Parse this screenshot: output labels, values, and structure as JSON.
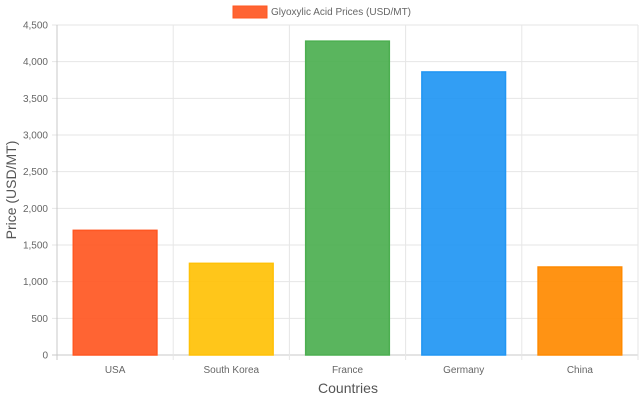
{
  "chart_data": {
    "type": "bar",
    "categories": [
      "USA",
      "South Korea",
      "France",
      "Germany",
      "China"
    ],
    "series": [
      {
        "name": "Glyoxylic Acid Prices (USD/MT)",
        "values": [
          1700,
          1250,
          4280,
          3860,
          1200
        ]
      }
    ],
    "bar_colors": [
      "#ff5722",
      "#ffc107",
      "#4caf50",
      "#2196f3",
      "#ff8a00"
    ],
    "legend_color": "#ff5722",
    "xlabel": "Countries",
    "ylabel": "Price (USD/MT)",
    "ylim": [
      0,
      4500
    ],
    "y_ticks": [
      0,
      500,
      1000,
      1500,
      2000,
      2500,
      3000,
      3500,
      4000,
      4500
    ],
    "y_tick_labels": [
      "0",
      "500",
      "1,000",
      "1,500",
      "2,000",
      "2,500",
      "3,000",
      "3,500",
      "4,000",
      "4,500"
    ],
    "grid": true,
    "legend_position": "top"
  }
}
